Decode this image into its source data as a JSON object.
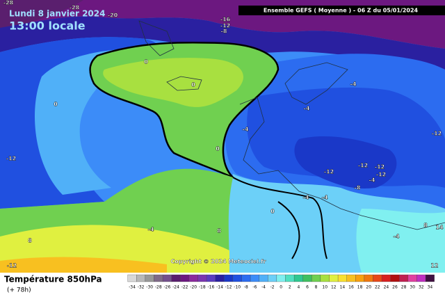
{
  "header": {
    "date": "Lundi 8 janvier 2024",
    "time": "13:00 locale",
    "run": "Ensemble GEFS  ( Moyenne )  - 06 Z du 05/01/2024"
  },
  "footer": {
    "title": "Température 850hPa",
    "lead": "(+ 78h)",
    "copyright": "Copyright © 2024 Meteociel.fr"
  },
  "map": {
    "contour_labels": [
      -28,
      -28,
      -20,
      -16,
      -12,
      -8,
      0,
      0,
      0,
      -12,
      -4,
      0,
      -4,
      -4,
      -12,
      -12,
      -12,
      -12,
      -12,
      -8,
      -4,
      0,
      -4,
      -4,
      8,
      -4,
      8,
      -4,
      8,
      14,
      -12,
      12
    ]
  },
  "legend": {
    "labels": [
      -34,
      -32,
      -30,
      -28,
      -26,
      -24,
      -22,
      -20,
      -18,
      -16,
      -14,
      -12,
      -10,
      -8,
      -6,
      -4,
      -2,
      0,
      2,
      4,
      6,
      8,
      10,
      12,
      14,
      16,
      18,
      20,
      22,
      24,
      26,
      28,
      30,
      32,
      34
    ],
    "colors": [
      "#d8d8d8",
      "#b8b8b8",
      "#989898",
      "#806a88",
      "#74508c",
      "#5a1f6e",
      "#6c1880",
      "#8a2a9c",
      "#7a36b0",
      "#5a3cc0",
      "#2a20a0",
      "#1a38c8",
      "#2050e0",
      "#2c6cf0",
      "#3c8cf8",
      "#50b0f8",
      "#6cd0f8",
      "#80f0f0",
      "#50e0c0",
      "#30c890",
      "#40c060",
      "#70d050",
      "#a8e040",
      "#e0f040",
      "#f8e030",
      "#f8c020",
      "#f8a010",
      "#f07810",
      "#e84818",
      "#d82020",
      "#b01010",
      "#c02050",
      "#e040a0",
      "#c030c0",
      "#401040"
    ]
  }
}
